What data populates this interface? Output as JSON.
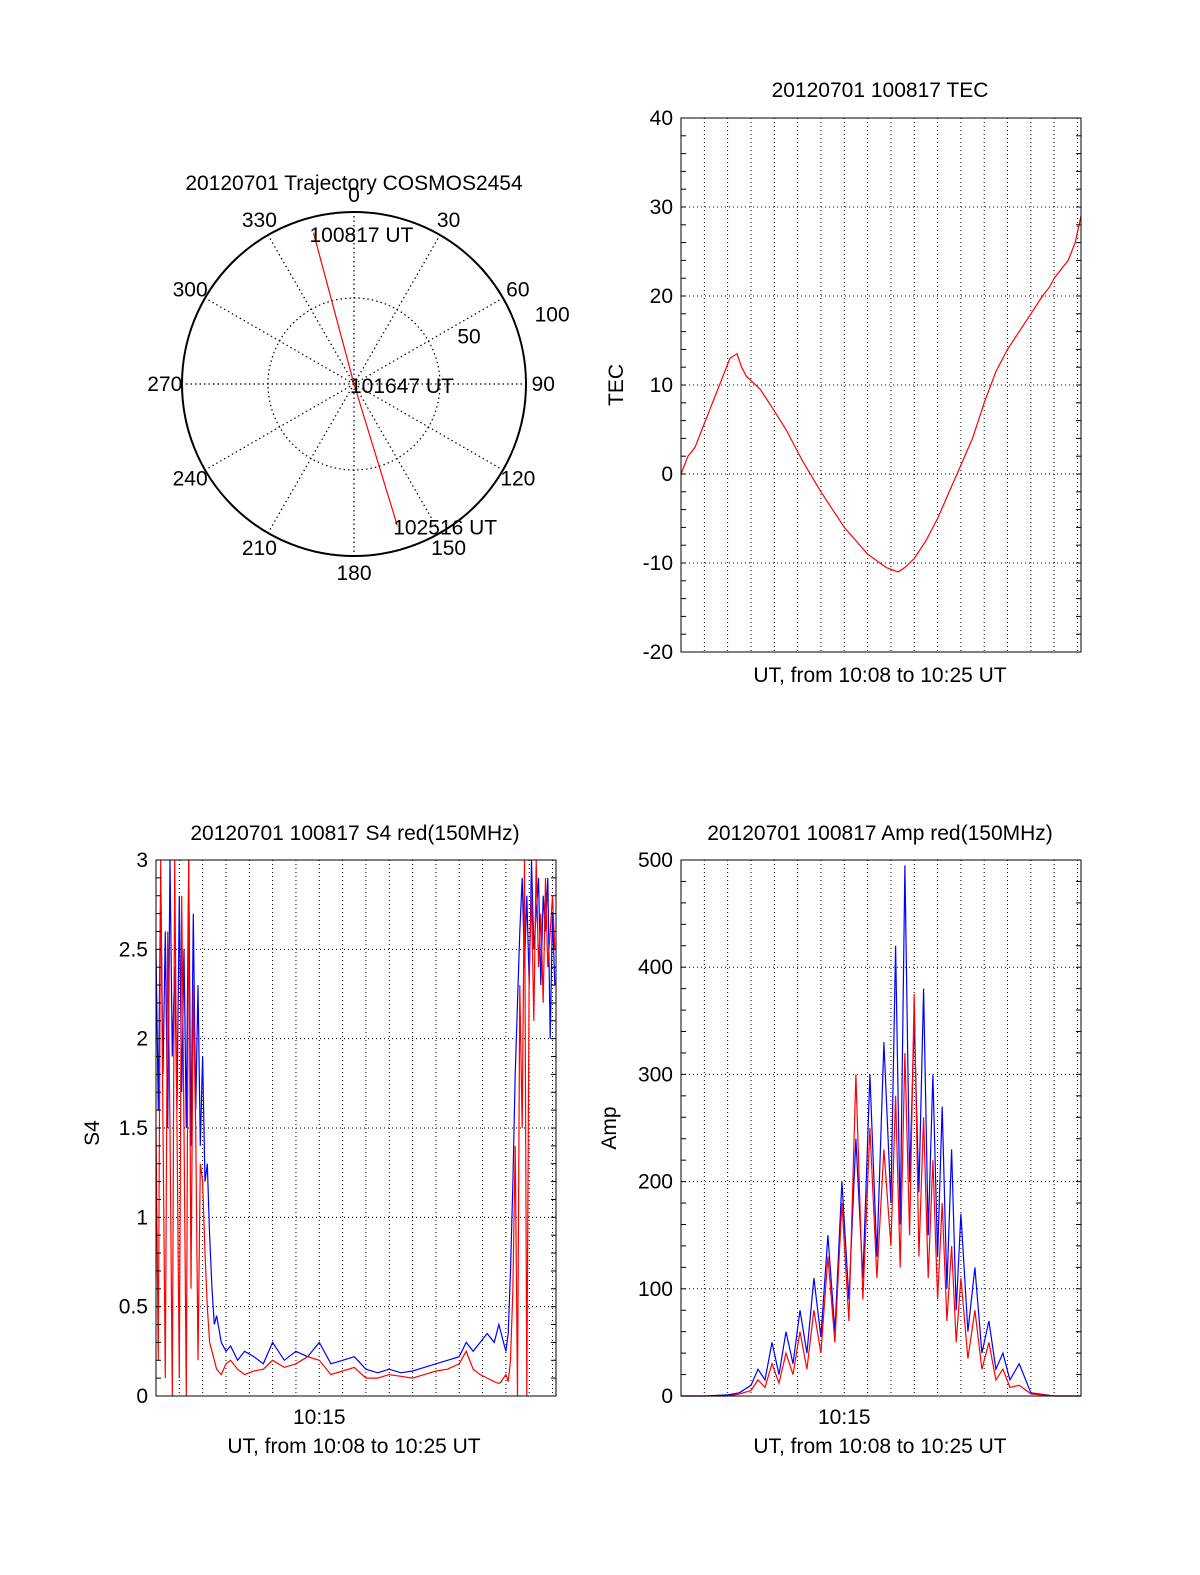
{
  "chart_data": [
    {
      "type": "polar",
      "title": "20120701 Trajectory COSMOS2454",
      "angle_ticks": [
        "0",
        "30",
        "60",
        "90",
        "120",
        "150",
        "180",
        "210",
        "240",
        "270",
        "300",
        "330"
      ],
      "angle_tick_values": [
        0,
        30,
        60,
        90,
        120,
        150,
        180,
        210,
        240,
        270,
        300,
        330
      ],
      "radial_ticks": [
        "50",
        "100"
      ],
      "radial_tick_values": [
        50,
        100
      ],
      "r_max": 100,
      "trajectory": [
        {
          "label": "100817 UT",
          "azimuth": 345,
          "r": 91
        },
        {
          "label": "101647 UT",
          "azimuth": 0,
          "r": 0
        },
        {
          "label": "102516 UT",
          "azimuth": 163,
          "r": 86
        }
      ],
      "color": "#ff0000"
    },
    {
      "type": "line",
      "title": "20120701 100817 TEC",
      "xlabel": "UT, from 10:08 to 10:25 UT",
      "ylabel": "TEC",
      "xlim": [
        0,
        17.15
      ],
      "ylim": [
        -20,
        40
      ],
      "yticks": [
        "40",
        "30",
        "20",
        "10",
        "0",
        "-10",
        "-20"
      ],
      "ytick_values": [
        40,
        30,
        20,
        10,
        0,
        -10,
        -20
      ],
      "grid": true,
      "series": [
        {
          "color": "#ff0000",
          "x": [
            0,
            0.3,
            0.6,
            0.9,
            1.2,
            1.5,
            1.8,
            2.1,
            2.4,
            2.6,
            2.8,
            3.0,
            3.4,
            3.9,
            4.5,
            5.2,
            6.0,
            7.0,
            8.0,
            8.8,
            9.3,
            9.6,
            10.0,
            10.5,
            11.0,
            11.5,
            12.0,
            12.5,
            13.0,
            13.5,
            14.0,
            14.5,
            15.0,
            15.5,
            15.8,
            16.0,
            16.3,
            16.6,
            16.9,
            17.15
          ],
          "y": [
            0,
            2,
            3,
            5,
            7,
            9,
            11,
            13,
            13.5,
            12,
            11,
            10.5,
            9.5,
            7.5,
            5,
            1.5,
            -2,
            -6,
            -9,
            -10.5,
            -11,
            -10.5,
            -9.5,
            -7.5,
            -5,
            -2,
            1,
            4,
            8,
            11.5,
            14,
            16,
            18,
            20,
            21,
            22,
            23,
            24,
            26,
            29
          ]
        }
      ]
    },
    {
      "type": "line",
      "title": "20120701 100817 S4 red(150MHz)",
      "xlabel": "UT, from 10:08 to 10:25 UT",
      "ylabel": "S4",
      "xlim": [
        0,
        17.15
      ],
      "ylim": [
        0,
        3
      ],
      "xticks": [
        "10:15"
      ],
      "xtick_values": [
        7
      ],
      "yticks": [
        "3",
        "2.5",
        "2",
        "1.5",
        "1",
        "0.5",
        "0"
      ],
      "ytick_values": [
        3,
        2.5,
        2,
        1.5,
        1,
        0.5,
        0
      ],
      "grid": true,
      "series": [
        {
          "color": "#0000ff",
          "x": [
            0.0,
            0.1,
            0.2,
            0.3,
            0.4,
            0.5,
            0.6,
            0.7,
            0.8,
            0.9,
            1.0,
            1.1,
            1.2,
            1.3,
            1.4,
            1.5,
            1.6,
            1.7,
            1.8,
            1.9,
            2.0,
            2.1,
            2.2,
            2.3,
            2.4,
            2.5,
            2.6,
            2.8,
            3.0,
            3.2,
            3.5,
            3.8,
            4.2,
            4.6,
            5.0,
            5.5,
            6.0,
            6.5,
            7.0,
            7.5,
            8.0,
            8.5,
            9.0,
            9.5,
            10.0,
            10.5,
            11.0,
            11.5,
            12.0,
            12.5,
            13.0,
            13.3,
            13.6,
            13.9,
            14.2,
            14.5,
            14.7,
            14.8,
            14.9,
            15.0,
            15.1,
            15.2,
            15.3,
            15.4,
            15.5,
            15.6,
            15.7,
            15.8,
            15.9,
            16.0,
            16.1,
            16.2,
            16.3,
            16.4,
            16.5,
            16.6,
            16.7,
            16.8,
            16.9,
            17.0,
            17.1
          ],
          "y": [
            2.5,
            1.6,
            2.9,
            1.8,
            2.6,
            1.5,
            3.0,
            1.9,
            2.4,
            1.6,
            2.8,
            1.7,
            2.5,
            1.5,
            3.0,
            1.4,
            2.7,
            1.6,
            2.3,
            1.4,
            1.9,
            1.2,
            1.3,
            0.9,
            0.6,
            0.4,
            0.45,
            0.3,
            0.25,
            0.28,
            0.2,
            0.25,
            0.22,
            0.18,
            0.3,
            0.2,
            0.25,
            0.22,
            0.3,
            0.18,
            0.2,
            0.22,
            0.15,
            0.13,
            0.15,
            0.13,
            0.14,
            0.16,
            0.18,
            0.2,
            0.22,
            0.3,
            0.25,
            0.3,
            0.35,
            0.3,
            0.4,
            0.35,
            0.3,
            0.25,
            0.35,
            0.7,
            1.2,
            1.8,
            2.2,
            2.6,
            2.9,
            2.4,
            2.8,
            2.3,
            3.0,
            2.5,
            2.7,
            2.9,
            2.3,
            2.8,
            2.6,
            2.9,
            2.0,
            2.7,
            2.3
          ]
        },
        {
          "color": "#ff0000",
          "x": [
            0.0,
            0.1,
            0.2,
            0.3,
            0.4,
            0.5,
            0.6,
            0.7,
            0.8,
            0.9,
            1.0,
            1.1,
            1.2,
            1.3,
            1.4,
            1.5,
            1.6,
            1.7,
            1.8,
            1.9,
            2.0,
            2.1,
            2.2,
            2.3,
            2.4,
            2.5,
            2.6,
            2.8,
            3.0,
            3.2,
            3.5,
            3.8,
            4.2,
            4.6,
            5.0,
            5.5,
            6.0,
            6.5,
            7.0,
            7.5,
            8.0,
            8.5,
            9.0,
            9.5,
            10.0,
            10.5,
            11.0,
            11.5,
            12.0,
            12.5,
            13.0,
            13.3,
            13.6,
            13.9,
            14.2,
            14.5,
            14.7,
            14.8,
            14.9,
            15.0,
            15.1,
            15.2,
            15.3,
            15.4,
            15.5,
            15.6,
            15.7,
            15.8,
            15.9,
            16.0,
            16.1,
            16.2,
            16.3,
            16.4,
            16.5,
            16.6,
            16.7,
            16.8,
            16.9,
            17.0,
            17.1
          ],
          "y": [
            1.5,
            0.2,
            3.0,
            1.5,
            0.1,
            2.6,
            1.5,
            0.0,
            3.0,
            1.5,
            0.1,
            2.8,
            1.5,
            0.0,
            3.0,
            0.6,
            2.3,
            1.5,
            0.2,
            1.3,
            1.2,
            0.8,
            0.5,
            0.3,
            0.25,
            0.2,
            0.15,
            0.12,
            0.18,
            0.2,
            0.15,
            0.12,
            0.14,
            0.15,
            0.2,
            0.16,
            0.18,
            0.22,
            0.2,
            0.12,
            0.14,
            0.16,
            0.1,
            0.1,
            0.12,
            0.11,
            0.1,
            0.12,
            0.14,
            0.15,
            0.18,
            0.25,
            0.15,
            0.12,
            0.1,
            0.08,
            0.07,
            0.08,
            0.1,
            0.12,
            0.08,
            0.2,
            0.6,
            1.4,
            0.0,
            2.3,
            1.5,
            3.0,
            0.0,
            2.4,
            2.8,
            2.1,
            3.0,
            2.4,
            2.7,
            2.2,
            2.9,
            2.4,
            2.6,
            2.8,
            2.5
          ]
        }
      ]
    },
    {
      "type": "line",
      "title": "20120701 100817 Amp red(150MHz)",
      "xlabel": "UT, from 10:08 to 10:25 UT",
      "ylabel": "Amp",
      "xlim": [
        0,
        17.15
      ],
      "ylim": [
        0,
        500
      ],
      "xticks": [
        "10:15"
      ],
      "xtick_values": [
        7
      ],
      "yticks": [
        "500",
        "400",
        "300",
        "200",
        "100",
        "0"
      ],
      "ytick_values": [
        500,
        400,
        300,
        200,
        100,
        0
      ],
      "grid": true,
      "series": [
        {
          "color": "#0000ff",
          "x": [
            0.0,
            1.0,
            2.0,
            2.5,
            3.0,
            3.3,
            3.6,
            3.9,
            4.2,
            4.5,
            4.8,
            5.1,
            5.4,
            5.7,
            6.0,
            6.3,
            6.6,
            6.9,
            7.2,
            7.5,
            7.8,
            8.1,
            8.4,
            8.7,
            9.0,
            9.2,
            9.4,
            9.6,
            9.8,
            10.0,
            10.2,
            10.4,
            10.6,
            10.8,
            11.0,
            11.2,
            11.4,
            11.6,
            11.8,
            12.0,
            12.3,
            12.6,
            12.9,
            13.2,
            13.5,
            13.8,
            14.1,
            14.5,
            15.0,
            16.0,
            17.15
          ],
          "y": [
            0,
            0,
            1,
            3,
            10,
            25,
            15,
            50,
            20,
            60,
            30,
            80,
            40,
            110,
            55,
            150,
            60,
            200,
            90,
            240,
            110,
            300,
            130,
            330,
            180,
            420,
            160,
            495,
            200,
            350,
            190,
            380,
            150,
            300,
            130,
            270,
            100,
            230,
            80,
            170,
            60,
            120,
            40,
            70,
            25,
            40,
            15,
            30,
            3,
            0,
            0
          ]
        },
        {
          "color": "#ff0000",
          "x": [
            0.0,
            1.0,
            2.0,
            2.5,
            3.0,
            3.3,
            3.6,
            3.9,
            4.2,
            4.5,
            4.8,
            5.1,
            5.4,
            5.7,
            6.0,
            6.3,
            6.6,
            6.9,
            7.2,
            7.5,
            7.8,
            8.1,
            8.4,
            8.7,
            9.0,
            9.2,
            9.4,
            9.6,
            9.8,
            10.0,
            10.2,
            10.4,
            10.6,
            10.8,
            11.0,
            11.2,
            11.4,
            11.6,
            11.8,
            12.0,
            12.3,
            12.6,
            12.9,
            13.2,
            13.5,
            13.8,
            14.1,
            14.5,
            15.0,
            16.0,
            17.15
          ],
          "y": [
            0,
            0,
            0,
            2,
            5,
            15,
            8,
            30,
            12,
            40,
            20,
            60,
            25,
            80,
            40,
            130,
            50,
            180,
            70,
            300,
            90,
            250,
            110,
            230,
            140,
            280,
            120,
            320,
            150,
            375,
            130,
            260,
            110,
            220,
            90,
            180,
            70,
            140,
            50,
            110,
            35,
            80,
            25,
            50,
            15,
            25,
            8,
            10,
            2,
            0,
            0
          ]
        }
      ]
    }
  ]
}
